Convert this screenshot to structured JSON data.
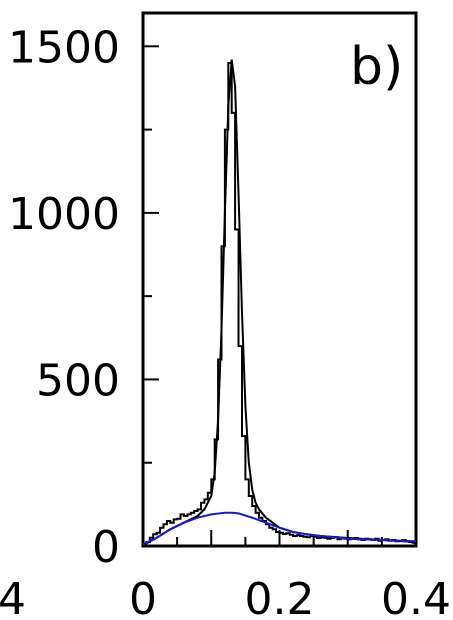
{
  "chart_data": {
    "type": "line",
    "panel_label": "b)",
    "xlabel": "",
    "ylabel": "",
    "xlim": [
      0.0,
      0.4
    ],
    "ylim": [
      0,
      1600
    ],
    "x_ticks": [
      {
        "value": 0.0,
        "label": "0"
      },
      {
        "value": 0.2,
        "label": "0.2"
      },
      {
        "value": 0.4,
        "label": "0.4"
      }
    ],
    "x_partial_tick": {
      "value": -0.2,
      "label": "4"
    },
    "y_ticks": [
      {
        "value": 0,
        "label": "0"
      },
      {
        "value": 500,
        "label": "500"
      },
      {
        "value": 1000,
        "label": "1000"
      },
      {
        "value": 1500,
        "label": "1500"
      }
    ],
    "grid": false,
    "colors": {
      "data": "#000000",
      "fit": "#000000",
      "background_fit": "#1a1acc"
    },
    "series": [
      {
        "role": "data-histogram",
        "x": [
          0.005,
          0.01,
          0.015,
          0.02,
          0.025,
          0.03,
          0.035,
          0.04,
          0.045,
          0.05,
          0.055,
          0.06,
          0.065,
          0.07,
          0.075,
          0.08,
          0.085,
          0.09,
          0.095,
          0.1,
          0.105,
          0.11,
          0.115,
          0.12,
          0.125,
          0.13,
          0.135,
          0.14,
          0.145,
          0.15,
          0.155,
          0.16,
          0.165,
          0.17,
          0.175,
          0.18,
          0.185,
          0.19,
          0.195,
          0.2,
          0.205,
          0.21,
          0.215,
          0.22,
          0.225,
          0.23,
          0.235,
          0.24,
          0.245,
          0.25,
          0.255,
          0.26,
          0.265,
          0.27,
          0.275,
          0.28,
          0.285,
          0.29,
          0.295,
          0.3,
          0.305,
          0.31,
          0.315,
          0.32,
          0.325,
          0.33,
          0.335,
          0.34,
          0.345,
          0.35,
          0.355,
          0.36,
          0.365,
          0.37,
          0.375,
          0.38,
          0.385,
          0.39,
          0.395,
          0.4
        ],
        "values": [
          0,
          12,
          25,
          35,
          40,
          55,
          65,
          75,
          70,
          80,
          82,
          95,
          90,
          95,
          100,
          105,
          110,
          130,
          140,
          160,
          200,
          320,
          560,
          900,
          1250,
          1450,
          1300,
          950,
          600,
          330,
          200,
          150,
          120,
          100,
          85,
          75,
          65,
          55,
          50,
          42,
          40,
          36,
          38,
          34,
          30,
          32,
          30,
          28,
          26,
          30,
          28,
          24,
          26,
          25,
          22,
          24,
          26,
          20,
          24,
          22,
          20,
          22,
          24,
          20,
          18,
          22,
          20,
          18,
          22,
          16,
          18,
          20,
          16,
          18,
          14,
          16,
          18,
          14,
          12,
          10
        ]
      },
      {
        "role": "total-fit",
        "x": [
          0.0,
          0.02,
          0.04,
          0.06,
          0.08,
          0.09,
          0.1,
          0.105,
          0.11,
          0.115,
          0.12,
          0.125,
          0.13,
          0.135,
          0.14,
          0.145,
          0.15,
          0.155,
          0.16,
          0.165,
          0.17,
          0.18,
          0.2,
          0.22,
          0.24,
          0.26,
          0.3,
          0.35,
          0.4
        ],
        "values": [
          2,
          25,
          50,
          70,
          90,
          110,
          150,
          220,
          380,
          650,
          1000,
          1320,
          1460,
          1380,
          1050,
          700,
          420,
          250,
          170,
          130,
          110,
          85,
          55,
          42,
          35,
          30,
          24,
          18,
          12
        ]
      },
      {
        "role": "background-fit",
        "x": [
          0.0,
          0.02,
          0.04,
          0.06,
          0.08,
          0.1,
          0.12,
          0.13,
          0.14,
          0.16,
          0.18,
          0.2,
          0.22,
          0.24,
          0.26,
          0.28,
          0.3,
          0.35,
          0.4
        ],
        "values": [
          5,
          25,
          50,
          70,
          85,
          95,
          100,
          100,
          98,
          85,
          70,
          55,
          42,
          35,
          30,
          26,
          22,
          18,
          14
        ]
      }
    ]
  }
}
